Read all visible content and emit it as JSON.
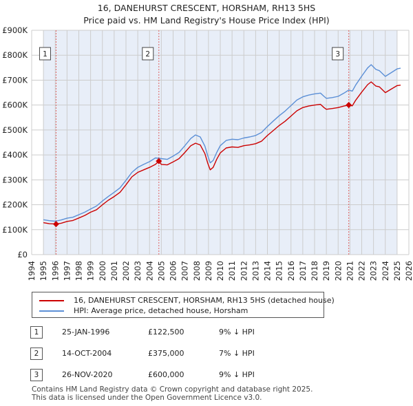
{
  "title": {
    "line1": "16, DANEHURST CRESCENT, HORSHAM, RH13 5HS",
    "line2": "Price paid vs. HM Land Registry's House Price Index (HPI)"
  },
  "colors": {
    "price_line": "#cc0000",
    "hpi_line": "#5b8fd6",
    "shade": "#e8eef8",
    "grid": "#cccccc",
    "vline": "#e06060"
  },
  "chart_data": {
    "type": "line",
    "xlim": [
      1994,
      2026
    ],
    "ylim": [
      0,
      900000
    ],
    "x_ticks": [
      "1994",
      "1995",
      "1996",
      "1997",
      "1998",
      "1999",
      "2000",
      "2001",
      "2002",
      "2003",
      "2004",
      "2005",
      "2006",
      "2007",
      "2008",
      "2009",
      "2010",
      "2011",
      "2012",
      "2013",
      "2014",
      "2015",
      "2016",
      "2017",
      "2018",
      "2019",
      "2020",
      "2021",
      "2022",
      "2023",
      "2024",
      "2025",
      "2026"
    ],
    "y_ticks": [
      {
        "value": 0,
        "label": "£0"
      },
      {
        "value": 100000,
        "label": "£100K"
      },
      {
        "value": 200000,
        "label": "£200K"
      },
      {
        "value": 300000,
        "label": "£300K"
      },
      {
        "value": 400000,
        "label": "£400K"
      },
      {
        "value": 500000,
        "label": "£500K"
      },
      {
        "value": 600000,
        "label": "£600K"
      },
      {
        "value": 700000,
        "label": "£700K"
      },
      {
        "value": 800000,
        "label": "£800K"
      },
      {
        "value": 900000,
        "label": "£900K"
      }
    ],
    "shaded_ranges": [
      [
        1995.0,
        2025.0
      ]
    ],
    "series": [
      {
        "name": "16, DANEHURST CRESCENT, HORSHAM, RH13 5HS (detached house)",
        "color": "#cc0000",
        "points": [
          [
            1995.0,
            128000
          ],
          [
            1995.5,
            124000
          ],
          [
            1996.07,
            122500
          ],
          [
            1996.5,
            126000
          ],
          [
            1997.0,
            133000
          ],
          [
            1997.5,
            137000
          ],
          [
            1998.0,
            147000
          ],
          [
            1998.5,
            157000
          ],
          [
            1999.0,
            170000
          ],
          [
            1999.5,
            180000
          ],
          [
            2000.0,
            200000
          ],
          [
            2000.5,
            218000
          ],
          [
            2001.0,
            233000
          ],
          [
            2001.5,
            250000
          ],
          [
            2002.0,
            280000
          ],
          [
            2002.5,
            312000
          ],
          [
            2003.0,
            330000
          ],
          [
            2003.5,
            340000
          ],
          [
            2004.0,
            350000
          ],
          [
            2004.5,
            362000
          ],
          [
            2004.79,
            375000
          ],
          [
            2005.0,
            362000
          ],
          [
            2005.5,
            360000
          ],
          [
            2006.0,
            372000
          ],
          [
            2006.5,
            385000
          ],
          [
            2007.0,
            410000
          ],
          [
            2007.5,
            437000
          ],
          [
            2007.9,
            447000
          ],
          [
            2008.3,
            440000
          ],
          [
            2008.7,
            405000
          ],
          [
            2008.95,
            365000
          ],
          [
            2009.15,
            340000
          ],
          [
            2009.4,
            350000
          ],
          [
            2009.7,
            383000
          ],
          [
            2010.0,
            408000
          ],
          [
            2010.5,
            428000
          ],
          [
            2011.0,
            432000
          ],
          [
            2011.5,
            430000
          ],
          [
            2012.0,
            437000
          ],
          [
            2012.5,
            440000
          ],
          [
            2013.0,
            445000
          ],
          [
            2013.5,
            455000
          ],
          [
            2014.0,
            478000
          ],
          [
            2014.5,
            498000
          ],
          [
            2015.0,
            518000
          ],
          [
            2015.5,
            535000
          ],
          [
            2016.0,
            556000
          ],
          [
            2016.5,
            577000
          ],
          [
            2017.0,
            590000
          ],
          [
            2017.5,
            596000
          ],
          [
            2018.0,
            600000
          ],
          [
            2018.5,
            603000
          ],
          [
            2018.8,
            590000
          ],
          [
            2019.0,
            583000
          ],
          [
            2019.5,
            586000
          ],
          [
            2020.0,
            590000
          ],
          [
            2020.5,
            596000
          ],
          [
            2020.9,
            600000
          ],
          [
            2021.2,
            597000
          ],
          [
            2021.5,
            620000
          ],
          [
            2022.0,
            652000
          ],
          [
            2022.5,
            682000
          ],
          [
            2022.8,
            693000
          ],
          [
            2023.2,
            676000
          ],
          [
            2023.5,
            673000
          ],
          [
            2024.0,
            650000
          ],
          [
            2024.5,
            664000
          ],
          [
            2025.0,
            678000
          ],
          [
            2025.3,
            680000
          ]
        ]
      },
      {
        "name": "HPI: Average price, detached house, Horsham",
        "color": "#5b8fd6",
        "points": [
          [
            1995.0,
            140000
          ],
          [
            1995.5,
            136000
          ],
          [
            1996.0,
            134000
          ],
          [
            1996.5,
            139000
          ],
          [
            1997.0,
            146000
          ],
          [
            1997.5,
            150000
          ],
          [
            1998.0,
            160000
          ],
          [
            1998.5,
            170000
          ],
          [
            1999.0,
            183000
          ],
          [
            1999.5,
            195000
          ],
          [
            2000.0,
            215000
          ],
          [
            2000.5,
            233000
          ],
          [
            2001.0,
            250000
          ],
          [
            2001.5,
            268000
          ],
          [
            2002.0,
            298000
          ],
          [
            2002.5,
            330000
          ],
          [
            2003.0,
            350000
          ],
          [
            2003.5,
            362000
          ],
          [
            2004.0,
            373000
          ],
          [
            2004.5,
            388000
          ],
          [
            2005.0,
            385000
          ],
          [
            2005.5,
            382000
          ],
          [
            2006.0,
            395000
          ],
          [
            2006.5,
            410000
          ],
          [
            2007.0,
            437000
          ],
          [
            2007.5,
            466000
          ],
          [
            2007.9,
            480000
          ],
          [
            2008.3,
            472000
          ],
          [
            2008.7,
            435000
          ],
          [
            2008.95,
            395000
          ],
          [
            2009.15,
            368000
          ],
          [
            2009.4,
            378000
          ],
          [
            2009.7,
            410000
          ],
          [
            2010.0,
            437000
          ],
          [
            2010.5,
            458000
          ],
          [
            2011.0,
            463000
          ],
          [
            2011.5,
            461000
          ],
          [
            2012.0,
            468000
          ],
          [
            2012.5,
            472000
          ],
          [
            2013.0,
            478000
          ],
          [
            2013.5,
            490000
          ],
          [
            2014.0,
            514000
          ],
          [
            2014.5,
            536000
          ],
          [
            2015.0,
            557000
          ],
          [
            2015.5,
            576000
          ],
          [
            2016.0,
            598000
          ],
          [
            2016.5,
            620000
          ],
          [
            2017.0,
            633000
          ],
          [
            2017.5,
            640000
          ],
          [
            2018.0,
            645000
          ],
          [
            2018.5,
            648000
          ],
          [
            2018.8,
            635000
          ],
          [
            2019.0,
            627000
          ],
          [
            2019.5,
            630000
          ],
          [
            2020.0,
            635000
          ],
          [
            2020.5,
            648000
          ],
          [
            2020.9,
            660000
          ],
          [
            2021.2,
            656000
          ],
          [
            2021.5,
            681000
          ],
          [
            2022.0,
            716000
          ],
          [
            2022.5,
            749000
          ],
          [
            2022.8,
            762000
          ],
          [
            2023.2,
            743000
          ],
          [
            2023.5,
            738000
          ],
          [
            2024.0,
            715000
          ],
          [
            2024.5,
            730000
          ],
          [
            2025.0,
            745000
          ],
          [
            2025.3,
            748000
          ]
        ]
      }
    ],
    "sales": [
      {
        "id": "1",
        "x": 1996.07,
        "price": 122500,
        "date": "25-JAN-1996",
        "price_label": "£122,500",
        "hpi_diff": "9% ↓ HPI"
      },
      {
        "id": "2",
        "x": 2004.79,
        "price": 375000,
        "date": "14-OCT-2004",
        "price_label": "£375,000",
        "hpi_diff": "7% ↓ HPI"
      },
      {
        "id": "3",
        "x": 2020.9,
        "price": 600000,
        "date": "26-NOV-2020",
        "price_label": "£600,000",
        "hpi_diff": "9% ↓ HPI"
      }
    ]
  },
  "legend": {
    "price_label": "16, DANEHURST CRESCENT, HORSHAM, RH13 5HS (detached house)",
    "hpi_label": "HPI: Average price, detached house, Horsham"
  },
  "footer": {
    "line1": "Contains HM Land Registry data © Crown copyright and database right 2025.",
    "line2": "This data is licensed under the Open Government Licence v3.0."
  }
}
